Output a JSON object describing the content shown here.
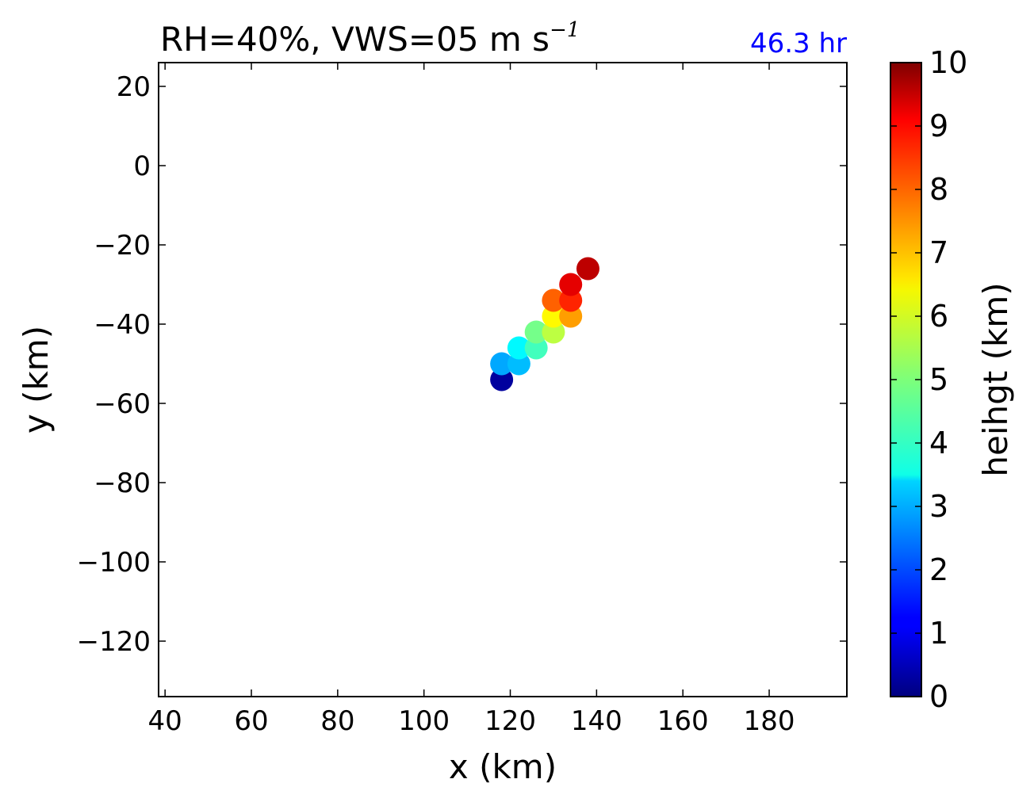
{
  "chart_data": {
    "type": "scatter",
    "title": "RH=40%, VWS=05 m s",
    "title_superscript": "−1",
    "time_label": "46.3 hr",
    "time_label_color": "#0000ff",
    "xlabel": "x (km)",
    "ylabel": "y (km)",
    "xlim": [
      38.5,
      198
    ],
    "ylim": [
      -134,
      26
    ],
    "xticks": [
      40,
      60,
      80,
      100,
      120,
      140,
      160,
      180
    ],
    "xtick_labels": [
      "40",
      "60",
      "80",
      "100",
      "120",
      "140",
      "160",
      "180"
    ],
    "yticks": [
      20,
      0,
      -20,
      -40,
      -60,
      -80,
      -100,
      -120
    ],
    "ytick_labels": [
      "20",
      "0",
      "−20",
      "−40",
      "−60",
      "−80",
      "−100",
      "−120"
    ],
    "colormap": "jet",
    "colorbar": {
      "label": "heihgt (km)",
      "range": [
        0,
        10
      ],
      "ticks": [
        0,
        1,
        2,
        3,
        4,
        5,
        6,
        7,
        8,
        9,
        10
      ],
      "tick_labels": [
        "0",
        "1",
        "2",
        "3",
        "4",
        "5",
        "6",
        "7",
        "8",
        "9",
        "10"
      ]
    },
    "points": [
      {
        "x": 118,
        "y": -54,
        "height": 0.3
      },
      {
        "x": 118,
        "y": -50,
        "height": 2.9
      },
      {
        "x": 122,
        "y": -50,
        "height": 3.1
      },
      {
        "x": 122,
        "y": -46,
        "height": 3.7
      },
      {
        "x": 126,
        "y": -46,
        "height": 4.4
      },
      {
        "x": 126,
        "y": -42,
        "height": 4.9
      },
      {
        "x": 130,
        "y": -42,
        "height": 5.6
      },
      {
        "x": 130,
        "y": -38,
        "height": 6.3
      },
      {
        "x": 134,
        "y": -38,
        "height": 7.2
      },
      {
        "x": 130,
        "y": -34,
        "height": 7.8
      },
      {
        "x": 134,
        "y": -34,
        "height": 8.4
      },
      {
        "x": 134,
        "y": -30,
        "height": 9.0
      },
      {
        "x": 138,
        "y": -26,
        "height": 9.4
      }
    ]
  }
}
